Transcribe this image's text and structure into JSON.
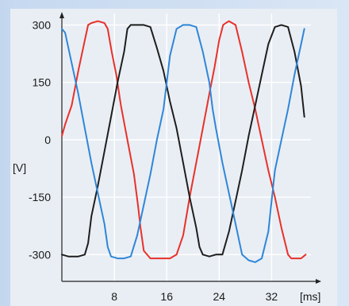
{
  "chart_data": {
    "type": "line",
    "title": "",
    "xlabel": "[ms]",
    "ylabel": "[V]",
    "xlim": [
      0,
      38
    ],
    "ylim": [
      -370,
      330
    ],
    "x_ticks": [
      8,
      16,
      24,
      32
    ],
    "y_ticks": [
      300,
      150,
      0,
      -150,
      -300
    ],
    "grid": true,
    "legend": "none",
    "series": [
      {
        "color": "#e8312a",
        "x": [
          0,
          0.5,
          1.5,
          2.5,
          3.5,
          4.0,
          4.5,
          5.5,
          6.5,
          7.0,
          7.6,
          8.3,
          9.0,
          10.0,
          11.0,
          11.6,
          12.0,
          12.5,
          13.5,
          14.5,
          15.5,
          16.5,
          17.5,
          18.5,
          19.0,
          19.5,
          20.5,
          21.5,
          22.5,
          23.3,
          24.0,
          24.6,
          25.0,
          25.5,
          26.0,
          26.5,
          27.5,
          28.5,
          29.5,
          30.5,
          31.5,
          32.5,
          33.5,
          34.5,
          35.0,
          35.5,
          36.5,
          37.2
        ],
        "y": [
          10,
          40,
          90,
          180,
          260,
          300,
          305,
          310,
          305,
          290,
          230,
          170,
          90,
          0,
          -90,
          -170,
          -230,
          -290,
          -310,
          -310,
          -310,
          -310,
          -300,
          -250,
          -200,
          -150,
          -60,
          30,
          120,
          190,
          260,
          300,
          305,
          310,
          305,
          300,
          230,
          150,
          80,
          0,
          -80,
          -150,
          -230,
          -300,
          -310,
          -310,
          -310,
          -300
        ]
      },
      {
        "color": "#1e1e1e",
        "x": [
          0,
          1.0,
          2.5,
          3.5,
          4.0,
          4.5,
          5.5,
          6.5,
          7.5,
          8.5,
          9.5,
          10.0,
          10.5,
          11.5,
          12.5,
          13.5,
          14.5,
          15.5,
          16.5,
          17.5,
          18.5,
          19.5,
          20.5,
          21.0,
          21.5,
          22.5,
          23.5,
          24.5,
          25.5,
          26.5,
          27.5,
          28.5,
          29.5,
          30.5,
          31.5,
          32.5,
          33.5,
          34.5,
          35.5,
          36.5,
          37.0
        ],
        "y": [
          -300,
          -305,
          -305,
          -300,
          -270,
          -200,
          -120,
          -30,
          60,
          150,
          230,
          290,
          300,
          300,
          300,
          295,
          240,
          180,
          100,
          30,
          -60,
          -150,
          -230,
          -280,
          -300,
          -305,
          -300,
          -300,
          -240,
          -160,
          -80,
          10,
          90,
          170,
          250,
          295,
          300,
          295,
          230,
          140,
          60
        ]
      },
      {
        "color": "#2f86d8",
        "x": [
          0,
          0.5,
          1.5,
          2.5,
          3.5,
          4.5,
          5.5,
          6.5,
          7.0,
          7.5,
          8.5,
          9.5,
          10.5,
          11.5,
          12.5,
          13.5,
          14.5,
          15.5,
          16.0,
          16.5,
          17.5,
          18.5,
          19.5,
          20.5,
          21.5,
          22.5,
          23.0,
          23.5,
          24.5,
          25.5,
          26.5,
          27.5,
          28.5,
          29.5,
          30.5,
          31.5,
          32.0,
          32.5,
          33.5,
          34.5,
          35.5,
          36.5,
          37.0
        ],
        "y": [
          290,
          280,
          200,
          120,
          30,
          -60,
          -140,
          -220,
          -280,
          -305,
          -310,
          -310,
          -305,
          -250,
          -170,
          -90,
          0,
          80,
          150,
          220,
          290,
          300,
          300,
          295,
          230,
          150,
          80,
          30,
          -60,
          -140,
          -220,
          -300,
          -315,
          -320,
          -310,
          -240,
          -160,
          -80,
          0,
          80,
          170,
          250,
          290
        ]
      }
    ]
  }
}
